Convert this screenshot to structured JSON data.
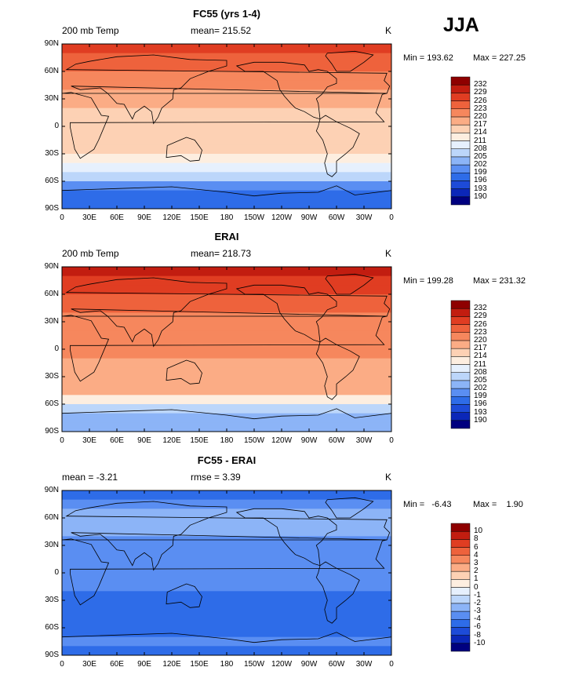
{
  "season": "JJA",
  "tick_labels": {
    "lat": [
      "90N",
      "60N",
      "30N",
      "0",
      "30S",
      "60S",
      "90S"
    ],
    "lon": [
      "0",
      "30E",
      "60E",
      "90E",
      "120E",
      "150E",
      "180",
      "150W",
      "120W",
      "90W",
      "60W",
      "30W",
      "0"
    ]
  },
  "colors": {
    "temp_scale": [
      "#00007f",
      "#0b27b8",
      "#1d4bd8",
      "#2e6ce8",
      "#5a8ef2",
      "#8cb4f7",
      "#bcd6fa",
      "#e6f0fd",
      "#fdeee0",
      "#fdd1b4",
      "#fbac85",
      "#f6875d",
      "#ee623c",
      "#e03d22",
      "#c21d10",
      "#8e0000"
    ],
    "diff_scale": [
      "#00007f",
      "#0b27b8",
      "#1d4bd8",
      "#2e6ce8",
      "#5a8ef2",
      "#8cb4f7",
      "#bcd6fa",
      "#e6f0fd",
      "#fdeee0",
      "#fdd1b4",
      "#fbac85",
      "#f6875d",
      "#ee623c",
      "#e03d22",
      "#c21d10",
      "#8e0000"
    ]
  },
  "panels": [
    {
      "title": "FC55 (yrs 1-4)",
      "left_text": "200 mb Temp",
      "mid_text": "mean= 215.52",
      "right_text": "K",
      "min_text": "Min = 193.62",
      "max_text": "Max = 227.25",
      "levels": [
        "190",
        "193",
        "196",
        "199",
        "202",
        "205",
        "208",
        "211",
        "214",
        "217",
        "220",
        "223",
        "226",
        "229",
        "232"
      ],
      "chart_data": {
        "type": "heatmap",
        "field": "200 mb Temp",
        "units": "K",
        "mean": 215.52,
        "min": 193.62,
        "max": 227.25,
        "levels": [
          190,
          193,
          196,
          199,
          202,
          205,
          208,
          211,
          214,
          217,
          220,
          223,
          226,
          229,
          232
        ],
        "lat_band_values": {
          "lat": [
            90,
            80,
            70,
            60,
            50,
            40,
            30,
            20,
            10,
            0,
            -10,
            -20,
            -30,
            -40,
            -50,
            -60,
            -70,
            -80,
            -90
          ],
          "value": [
            226,
            226,
            224,
            222,
            221,
            219,
            218,
            217,
            216,
            216,
            216,
            215,
            213,
            210,
            208,
            204,
            199,
            197,
            196
          ]
        }
      }
    },
    {
      "title": "ERAI",
      "left_text": "200 mb Temp",
      "mid_text": "mean= 218.73",
      "right_text": "K",
      "min_text": "Min = 199.28",
      "max_text": "Max = 231.32",
      "levels": [
        "190",
        "193",
        "196",
        "199",
        "202",
        "205",
        "208",
        "211",
        "214",
        "217",
        "220",
        "223",
        "226",
        "229",
        "232"
      ],
      "chart_data": {
        "type": "heatmap",
        "field": "200 mb Temp",
        "units": "K",
        "mean": 218.73,
        "min": 199.28,
        "max": 231.32,
        "levels": [
          190,
          193,
          196,
          199,
          202,
          205,
          208,
          211,
          214,
          217,
          220,
          223,
          226,
          229,
          232
        ],
        "lat_band_values": {
          "lat": [
            90,
            80,
            70,
            60,
            50,
            40,
            30,
            20,
            10,
            0,
            -10,
            -20,
            -30,
            -40,
            -50,
            -60,
            -70,
            -80,
            -90
          ],
          "value": [
            230,
            229,
            227,
            225,
            224,
            223,
            222,
            221,
            220,
            220,
            220,
            219,
            219,
            218,
            217,
            210,
            203,
            202,
            202
          ]
        }
      }
    },
    {
      "title": "FC55 - ERAI",
      "left_text": "mean =   -3.21",
      "mid_text": "rmse =     3.39",
      "right_text": "K",
      "min_text": "Min =   -6.43",
      "max_text": "Max =    1.90",
      "levels": [
        "-10",
        "-8",
        "-6",
        "-4",
        "-3",
        "-2",
        "-1",
        "0",
        "1",
        "2",
        "3",
        "4",
        "6",
        "8",
        "10"
      ],
      "chart_data": {
        "type": "heatmap",
        "field": "FC55 - ERAI",
        "units": "K",
        "mean": -3.21,
        "rmse": 3.39,
        "min": -6.43,
        "max": 1.9,
        "levels": [
          -10,
          -8,
          -6,
          -4,
          -3,
          -2,
          -1,
          0,
          1,
          2,
          3,
          4,
          6,
          8,
          10
        ],
        "lat_band_values": {
          "lat": [
            90,
            80,
            70,
            60,
            50,
            40,
            30,
            20,
            10,
            0,
            -10,
            -20,
            -30,
            -40,
            -50,
            -60,
            -70,
            -80,
            -90
          ],
          "value": [
            -4.5,
            -4.5,
            -3.5,
            -2.5,
            -2.5,
            -3,
            -3.5,
            -4,
            -4,
            -4,
            -4,
            -4,
            -5,
            -6,
            -6,
            -5,
            -4,
            -4,
            -5
          ]
        }
      }
    }
  ]
}
